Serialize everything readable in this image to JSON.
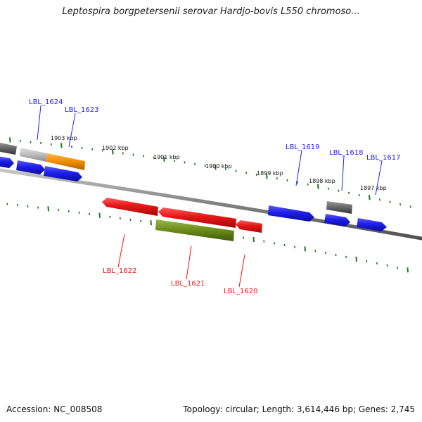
{
  "title": "Leptospira borgpetersenii serovar Hardjo-bovis L550 chromoso...",
  "footer": {
    "accession": "Accession: NC_008508",
    "summary": "Topology: circular; Length: 3,614,446 bp; Genes: 2,745"
  },
  "colors": {
    "forward_gene": "#1f1fe8",
    "reverse_gene": "#e81515",
    "gray_gene": "#666666",
    "light_gray_gene": "#bbbbbb",
    "orange_gene": "#f08c00",
    "olive_gene": "#6b8a1a",
    "tick_green": "#1a7a1a",
    "backbone": "#808080"
  },
  "scale_labels": [
    "1903 kbp",
    "1902 kbp",
    "1901 kbp",
    "1900 kbp",
    "1899 kbp",
    "1898 kbp",
    "1897 kbp"
  ],
  "forward_labels": [
    "LBL_1624",
    "LBL_1623",
    "LBL_1619",
    "LBL_1618",
    "LBL_1617"
  ],
  "reverse_labels": [
    "LBL_1622",
    "LBL_1621",
    "LBL_1620"
  ]
}
